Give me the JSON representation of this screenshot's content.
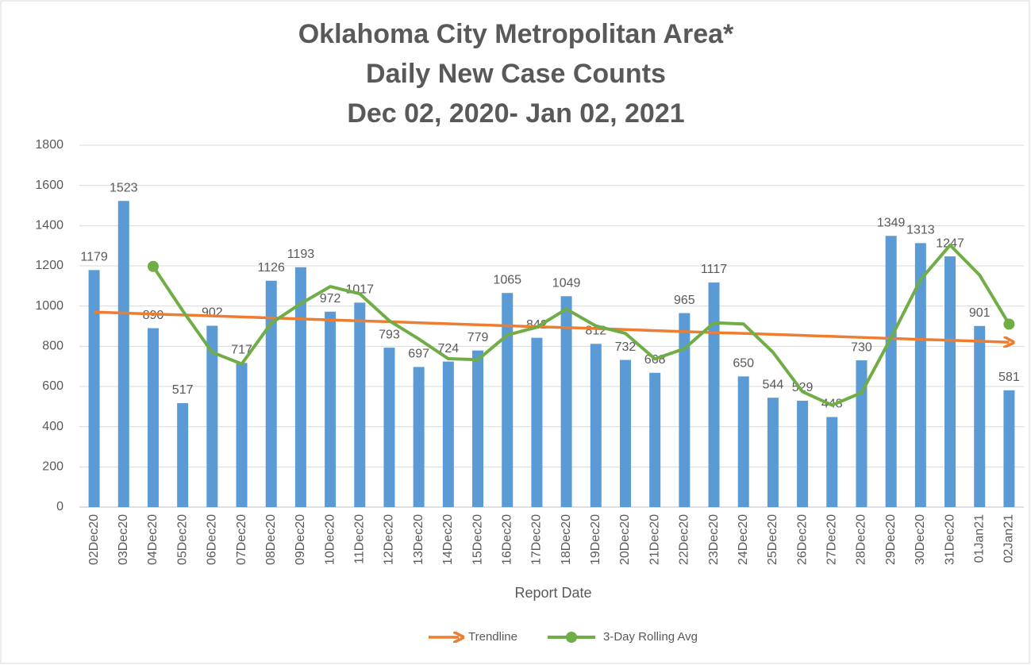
{
  "chart_data": {
    "type": "bar",
    "title": [
      "Oklahoma City Metropolitan Area*",
      "Daily New Case Counts",
      "Dec 02, 2020- Jan 02, 2021"
    ],
    "x_label": "Report Date",
    "categories": [
      "02Dec20",
      "03Dec20",
      "04Dec20",
      "05Dec20",
      "06Dec20",
      "07Dec20",
      "08Dec20",
      "09Dec20",
      "10Dec20",
      "11Dec20",
      "12Dec20",
      "13Dec20",
      "14Dec20",
      "15Dec20",
      "16Dec20",
      "17Dec20",
      "18Dec20",
      "19Dec20",
      "20Dec20",
      "21Dec20",
      "22Dec20",
      "23Dec20",
      "24Dec20",
      "25Dec20",
      "26Dec20",
      "27Dec20",
      "28Dec20",
      "29Dec20",
      "30Dec20",
      "31Dec20",
      "01Jan21",
      "02Jan21"
    ],
    "values": [
      1179,
      1523,
      890,
      517,
      902,
      717,
      1126,
      1193,
      972,
      1017,
      793,
      697,
      724,
      779,
      1065,
      842,
      1049,
      812,
      732,
      668,
      965,
      1117,
      650,
      544,
      529,
      448,
      730,
      1349,
      1313,
      1247,
      901,
      581
    ],
    "color": "#5b9bd5",
    "series": [
      {
        "name": "Trendline",
        "color": "#ed7d31",
        "values": [
          970,
          965,
          960,
          956,
          951,
          946,
          941,
          936,
          931,
          926,
          922,
          917,
          912,
          907,
          902,
          897,
          893,
          888,
          883,
          878,
          873,
          868,
          864,
          859,
          854,
          849,
          844,
          839,
          834,
          830,
          825,
          820
        ]
      },
      {
        "name": "3-Day Rolling Avg",
        "color": "#70ad47",
        "values": [
          null,
          null,
          1197,
          977,
          770,
          712,
          915,
          1012,
          1097,
          1061,
          927,
          836,
          738,
          733,
          856,
          895,
          985,
          901,
          864,
          737,
          788,
          917,
          911,
          770,
          574,
          507,
          569,
          842,
          1131,
          1303,
          1154,
          910
        ]
      }
    ],
    "ylim": [
      0,
      1800
    ],
    "yticks": [
      0,
      200,
      400,
      600,
      800,
      1000,
      1200,
      1400,
      1600,
      1800
    ],
    "grid": true
  }
}
